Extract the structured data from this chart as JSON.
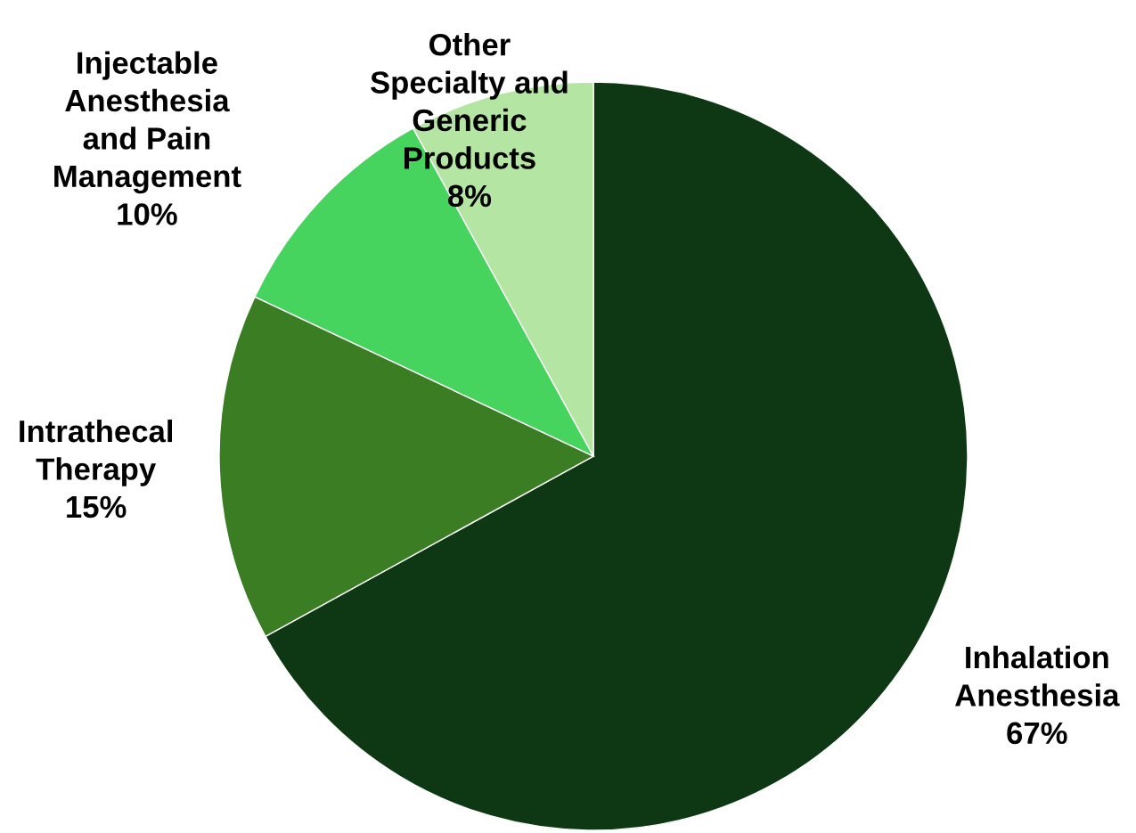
{
  "chart_data": {
    "type": "pie",
    "categories": [
      "Inhalation\nAnesthesia",
      "Intrathecal\nTherapy",
      "Injectable\nAnesthesia\nand Pain\nManagement",
      "Other\nSpecialty and\nGeneric\nProducts"
    ],
    "values": [
      67,
      15,
      10,
      8
    ],
    "value_labels": [
      "67%",
      "15%",
      "10%",
      "8%"
    ],
    "colors": [
      "#0e3814",
      "#3b7d23",
      "#47d45e",
      "#b4e5a2"
    ],
    "legend": false
  }
}
